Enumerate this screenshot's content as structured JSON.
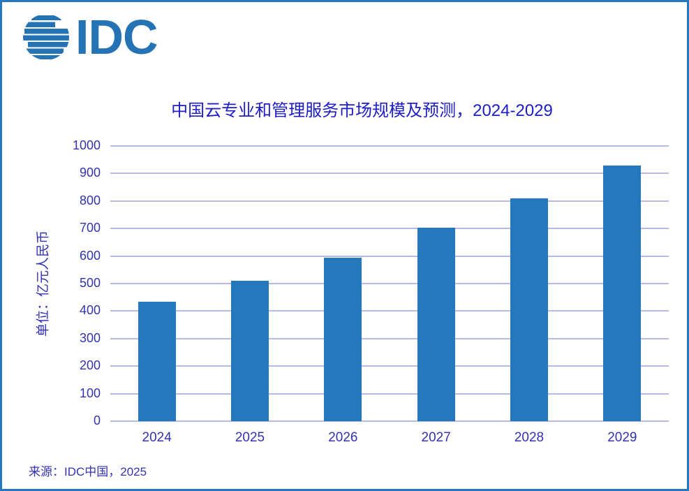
{
  "logo": {
    "text": "IDC"
  },
  "source": "来源：IDC中国，2025",
  "chart_data": {
    "type": "bar",
    "title": "中国云专业和管理服务市场规模及预测，2024-2029",
    "categories": [
      "2024",
      "2025",
      "2026",
      "2027",
      "2028",
      "2029"
    ],
    "values": [
      435,
      509,
      593,
      702,
      809,
      928
    ],
    "xlabel": "",
    "ylabel": "单位：亿元人民币",
    "ylim": [
      0,
      1000
    ],
    "ytick_step": 100,
    "grid": true,
    "legend": false,
    "colors": {
      "bar": "#2578BC",
      "gridline": "#B9B9E8",
      "title_text": "#1D1DC8",
      "axis_text": "#3232B4",
      "frame_border": "#2578BC",
      "logo_blue": "#2474B5"
    }
  }
}
